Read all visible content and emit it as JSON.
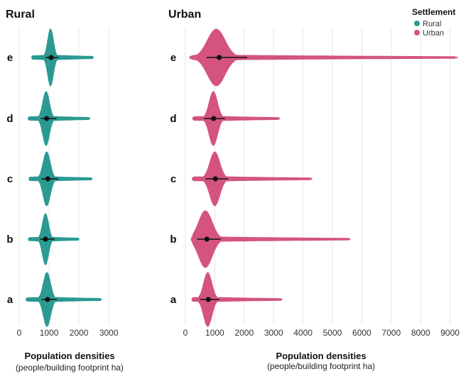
{
  "chart_data": [
    {
      "type": "violin",
      "title": "Rural",
      "xlabel": "Population densities",
      "xlabel_sub": "(people/building footprint ha)",
      "xlim": [
        0,
        3400
      ],
      "xticks": [
        0,
        1000,
        2000,
        3000
      ],
      "categories": [
        "e",
        "d",
        "c",
        "b",
        "a"
      ],
      "color": "#2a9a92",
      "violins": [
        {
          "category": "e",
          "min": 420,
          "max": 2480,
          "mode": 1050,
          "width": 1.0,
          "spread": 95,
          "median": 1070,
          "q1": 880,
          "q3": 1310
        },
        {
          "category": "d",
          "min": 300,
          "max": 2360,
          "mode": 900,
          "width": 0.95,
          "spread": 110,
          "median": 920,
          "q1": 720,
          "q3": 1250
        },
        {
          "category": "c",
          "min": 330,
          "max": 2440,
          "mode": 920,
          "width": 0.95,
          "spread": 120,
          "median": 960,
          "q1": 740,
          "q3": 1300
        },
        {
          "category": "b",
          "min": 310,
          "max": 2000,
          "mode": 880,
          "width": 0.9,
          "spread": 100,
          "median": 880,
          "q1": 700,
          "q3": 1180
        },
        {
          "category": "a",
          "min": 230,
          "max": 2750,
          "mode": 930,
          "width": 0.95,
          "spread": 120,
          "median": 950,
          "q1": 750,
          "q3": 1270
        }
      ]
    },
    {
      "type": "violin",
      "title": "Urban",
      "xlabel": "Population densities",
      "xlabel_sub": "(people/building footprint ha)",
      "xlim": [
        0,
        9300
      ],
      "xticks": [
        0,
        1000,
        2000,
        3000,
        4000,
        5000,
        6000,
        7000,
        8000,
        9000
      ],
      "categories": [
        "e",
        "d",
        "c",
        "b",
        "a"
      ],
      "color": "#d4547f",
      "violins": [
        {
          "category": "e",
          "min": 150,
          "max": 9250,
          "mode": 1050,
          "width": 1.0,
          "spread": 300,
          "median": 1150,
          "q1": 720,
          "q3": 2100
        },
        {
          "category": "d",
          "min": 250,
          "max": 3200,
          "mode": 950,
          "width": 0.95,
          "spread": 140,
          "median": 960,
          "q1": 640,
          "q3": 1350
        },
        {
          "category": "c",
          "min": 230,
          "max": 4300,
          "mode": 1000,
          "width": 0.95,
          "spread": 170,
          "median": 1020,
          "q1": 680,
          "q3": 1450
        },
        {
          "category": "b",
          "min": 200,
          "max": 5600,
          "mode": 680,
          "width": 1.0,
          "spread": 230,
          "median": 730,
          "q1": 400,
          "q3": 1200
        },
        {
          "category": "a",
          "min": 220,
          "max": 3280,
          "mode": 760,
          "width": 0.95,
          "spread": 140,
          "median": 780,
          "q1": 500,
          "q3": 1150
        }
      ]
    }
  ],
  "legend": {
    "title": "Settlement",
    "items": [
      {
        "label": "Rural",
        "color": "#2a9a92"
      },
      {
        "label": "Urban",
        "color": "#d4547f"
      }
    ]
  }
}
